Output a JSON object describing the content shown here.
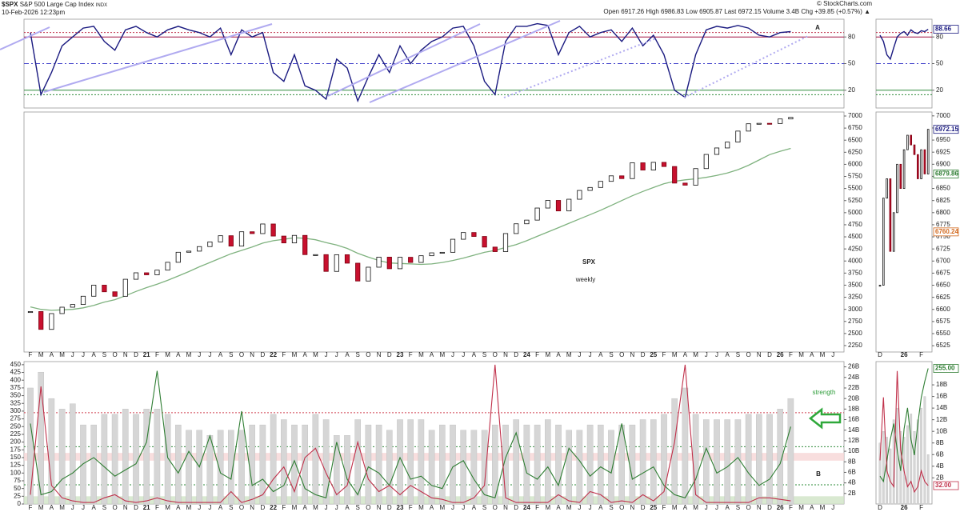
{
  "header": {
    "symbol": "$SPX",
    "name": "S&P 500 Large Cap Index",
    "exchange": "INDX",
    "datetime": "10-Feb-2026 12:23pm",
    "quote": [
      "Open 6917.26",
      "High 6986.83",
      "Low 6905.87",
      "Last 6972.15",
      "Volume 3.4B",
      "Chg +39.85 (+0.57%)"
    ],
    "credit": "© StockCharts.com",
    "annotations": [
      "A",
      "SPX",
      "weekly",
      "strength",
      "B"
    ]
  },
  "chart_data": [
    {
      "type": "line",
      "color": "#1a1a80",
      "ylim": [
        0,
        100
      ],
      "yticks": [
        80,
        50,
        20
      ],
      "ref_lines": [
        {
          "value": 85,
          "color": "#c0304a",
          "dash": "2,2"
        },
        {
          "value": 80,
          "color": "#a01040"
        },
        {
          "value": 50,
          "color": "#4444cc",
          "dash": "6,3,2,3"
        },
        {
          "value": 20,
          "color": "#2e8b3a"
        },
        {
          "value": 15,
          "color": "#2e8b3a",
          "dash": "2,2"
        }
      ],
      "values": [
        85,
        15,
        40,
        70,
        80,
        90,
        92,
        75,
        65,
        88,
        92,
        85,
        80,
        88,
        92,
        88,
        85,
        80,
        90,
        60,
        88,
        80,
        85,
        40,
        30,
        60,
        25,
        20,
        10,
        55,
        45,
        8,
        35,
        60,
        40,
        70,
        50,
        65,
        75,
        80,
        90,
        92,
        70,
        30,
        15,
        75,
        92,
        92,
        95,
        93,
        60,
        85,
        92,
        80,
        85,
        88,
        75,
        90,
        70,
        82,
        60,
        20,
        12,
        60,
        88,
        92,
        90,
        93,
        90,
        82,
        80,
        85,
        86,
        null,
        null,
        null,
        null
      ]
    },
    {
      "type": "candlestick",
      "ylim": [
        2117,
        7083
      ],
      "yticks": [
        2250,
        2500,
        2750,
        3000,
        3250,
        3500,
        3750,
        4000,
        4250,
        4500,
        4750,
        5000,
        5250,
        5500,
        5750,
        6000,
        6250,
        6500,
        6750,
        7000
      ],
      "categories": [
        "F",
        "M",
        "A",
        "M",
        "J",
        "J",
        "A",
        "S",
        "O",
        "N",
        "D",
        "21",
        "F",
        "M",
        "A",
        "M",
        "J",
        "J",
        "A",
        "S",
        "O",
        "N",
        "D",
        "22",
        "F",
        "M",
        "A",
        "M",
        "J",
        "J",
        "A",
        "S",
        "O",
        "N",
        "D",
        "23",
        "F",
        "M",
        "A",
        "M",
        "J",
        "J",
        "A",
        "S",
        "O",
        "N",
        "D",
        "24",
        "F",
        "M",
        "A",
        "M",
        "J",
        "J",
        "A",
        "S",
        "O",
        "N",
        "D",
        "25",
        "F",
        "M",
        "A",
        "M",
        "J",
        "J",
        "A",
        "S",
        "O",
        "N",
        "D",
        "26",
        "F",
        "M",
        "A",
        "M",
        "J"
      ],
      "values": [
        2954,
        2585,
        2912,
        3044,
        3100,
        3271,
        3500,
        3363,
        3270,
        3622,
        3756,
        3714,
        3811,
        3973,
        4181,
        4204,
        4298,
        4395,
        4523,
        4308,
        4605,
        4567,
        4766,
        4516,
        4374,
        4530,
        4132,
        4132,
        3785,
        4130,
        3955,
        3586,
        3872,
        4080,
        3840,
        4077,
        3970,
        4109,
        4169,
        4180,
        4450,
        4589,
        4508,
        4288,
        4194,
        4568,
        4770,
        4846,
        5096,
        5254,
        5036,
        5278,
        5460,
        5522,
        5648,
        5762,
        5705,
        6032,
        5882,
        6041,
        5955,
        5612,
        5569,
        5912,
        6205,
        6339,
        6460,
        6688,
        6840,
        6849,
        6845,
        6939,
        6972.15,
        null,
        null,
        null,
        null
      ],
      "overlays": [
        {
          "color": "#7fb27f",
          "values": [
            3050,
            3000,
            2980,
            2990,
            3000,
            3030,
            3080,
            3150,
            3200,
            3280,
            3370,
            3450,
            3520,
            3600,
            3690,
            3780,
            3880,
            3970,
            4060,
            4150,
            4220,
            4290,
            4370,
            4420,
            4450,
            4480,
            4470,
            4440,
            4380,
            4330,
            4260,
            4160,
            4080,
            4010,
            3960,
            3950,
            3940,
            3930,
            3940,
            3970,
            4010,
            4060,
            4120,
            4180,
            4220,
            4280,
            4340,
            4420,
            4510,
            4600,
            4690,
            4780,
            4870,
            4960,
            5050,
            5150,
            5250,
            5350,
            5440,
            5520,
            5600,
            5650,
            5680,
            5700,
            5730,
            5770,
            5820,
            5890,
            5980,
            6090,
            6200,
            6270,
            6330,
            null,
            null,
            null,
            null
          ]
        }
      ]
    },
    {
      "type": "bar",
      "ylim": [
        0,
        460
      ],
      "y2lim": [
        0,
        27
      ],
      "yticks": [
        0,
        25,
        50,
        75,
        100,
        125,
        150,
        175,
        200,
        225,
        250,
        275,
        300,
        325,
        350,
        375,
        400,
        425,
        450
      ],
      "y2ticks": [
        {
          "value": 2,
          "label": "2B"
        },
        {
          "value": 4,
          "label": "4B"
        },
        {
          "value": 6,
          "label": "6B"
        },
        {
          "value": 8,
          "label": "8B"
        },
        {
          "value": 10,
          "label": "10B"
        },
        {
          "value": 12,
          "label": "12B"
        },
        {
          "value": 14,
          "label": "14B"
        },
        {
          "value": 16,
          "label": "16B"
        },
        {
          "value": 18,
          "label": "18B"
        },
        {
          "value": 20,
          "label": "20B"
        },
        {
          "value": 22,
          "label": "22B"
        },
        {
          "value": 24,
          "label": "24B"
        },
        {
          "value": 26,
          "label": "26B"
        }
      ],
      "bands": [
        {
          "from": 140,
          "to": 165,
          "color": "#f6d6d6"
        },
        {
          "from": 0,
          "to": 25,
          "color": "#cfe3c6"
        }
      ],
      "ref_lines": [
        {
          "value": 295,
          "color": "#d04050",
          "dash": "2,2"
        },
        {
          "value": 185,
          "color": "#2e8b3a",
          "dash": "2,2"
        },
        {
          "value": 62,
          "color": "#2e8b3a",
          "dash": "2,2"
        }
      ],
      "series": [
        {
          "type": "bar",
          "axis": "y2",
          "color": "#d6d6d6",
          "values": [
            22,
            25,
            20,
            18,
            19,
            15,
            15,
            17,
            17,
            18,
            17,
            18,
            18,
            17,
            15,
            14,
            14,
            13,
            14,
            14,
            14,
            15,
            15,
            17,
            16,
            15,
            15,
            17,
            16,
            13,
            13,
            16,
            15,
            15,
            14,
            16,
            16,
            16,
            14,
            15,
            15,
            14,
            14,
            14,
            15,
            15,
            16,
            15,
            15,
            16,
            15,
            14,
            14,
            15,
            15,
            14,
            15,
            15,
            16,
            16,
            17,
            20,
            22,
            17,
            16,
            16,
            16,
            16,
            17,
            17,
            17,
            18,
            20,
            null,
            null,
            null,
            null
          ]
        },
        {
          "type": "line",
          "color": "#2e7d32",
          "values": [
            260,
            30,
            40,
            80,
            100,
            130,
            150,
            120,
            90,
            110,
            130,
            200,
            430,
            150,
            100,
            170,
            120,
            220,
            100,
            80,
            300,
            60,
            80,
            40,
            60,
            140,
            50,
            30,
            20,
            200,
            80,
            30,
            120,
            100,
            60,
            150,
            80,
            90,
            60,
            50,
            120,
            140,
            80,
            30,
            20,
            150,
            230,
            100,
            80,
            120,
            60,
            180,
            140,
            90,
            120,
            100,
            260,
            80,
            100,
            120,
            60,
            30,
            20,
            80,
            180,
            100,
            120,
            150,
            100,
            60,
            80,
            130,
            250,
            null,
            null,
            null,
            null
          ]
        },
        {
          "type": "line",
          "color": "#c0304a",
          "values": [
            30,
            380,
            60,
            20,
            10,
            5,
            5,
            20,
            30,
            10,
            5,
            10,
            20,
            10,
            5,
            5,
            5,
            5,
            5,
            40,
            5,
            15,
            30,
            80,
            120,
            40,
            150,
            180,
            100,
            30,
            60,
            200,
            80,
            40,
            60,
            30,
            60,
            40,
            20,
            15,
            5,
            5,
            20,
            60,
            450,
            20,
            5,
            5,
            5,
            5,
            30,
            10,
            5,
            40,
            30,
            5,
            10,
            5,
            30,
            10,
            40,
            200,
            450,
            30,
            5,
            5,
            5,
            5,
            5,
            20,
            20,
            15,
            10,
            null,
            null,
            null,
            null
          ]
        }
      ]
    },
    {
      "type": "line",
      "color": "#1a1a80",
      "ylim": [
        0,
        100
      ],
      "yticks": [
        80,
        50,
        20
      ],
      "ref_lines": [
        {
          "value": 85,
          "color": "#c0304a",
          "dash": "2,2"
        },
        {
          "value": 80,
          "color": "#a01040"
        },
        {
          "value": 50,
          "color": "#4444cc",
          "dash": "6,3,2,3"
        },
        {
          "value": 20,
          "color": "#2e8b3a"
        },
        {
          "value": 15,
          "color": "#2e8b3a",
          "dash": "2,2"
        }
      ],
      "values": [
        82,
        75,
        60,
        55,
        68,
        80,
        84,
        86,
        82,
        88,
        85,
        84,
        87,
        86,
        88.66
      ],
      "readouts": [
        {
          "value": 88.66,
          "color": "#1a1a80"
        }
      ]
    },
    {
      "type": "candlestick",
      "ylim": [
        6512,
        7008
      ],
      "yticks": [
        6525,
        6550,
        6575,
        6600,
        6625,
        6650,
        6675,
        6700,
        6725,
        6750,
        6775,
        6800,
        6825,
        6850,
        6875,
        6900,
        6925,
        6950,
        6975,
        7000
      ],
      "categories": [
        "D",
        null,
        null,
        null,
        null,
        null,
        null,
        "26",
        null,
        null,
        null,
        null,
        "F",
        null,
        null
      ],
      "values": [
        6650,
        6830,
        6870,
        6720,
        6800,
        6900,
        6850,
        6930,
        6960,
        6940,
        6920,
        6870,
        6930,
        6880,
        6972.15
      ],
      "readouts": [
        {
          "value": 6972.15,
          "color": "#1a1a80"
        },
        {
          "value": 6879.86,
          "color": "#2e7d32"
        },
        {
          "value": 6760.24,
          "color": "#d2691e"
        }
      ]
    },
    {
      "type": "bar",
      "ylim": [
        -3,
        268
      ],
      "y2lim": [
        -2.5,
        22
      ],
      "y2ticks": [
        {
          "value": 2,
          "label": "2B"
        },
        {
          "value": 4,
          "label": "4B"
        },
        {
          "value": 6,
          "label": "6B"
        },
        {
          "value": 8,
          "label": "8B"
        },
        {
          "value": 10,
          "label": "10B"
        },
        {
          "value": 12,
          "label": "12B"
        },
        {
          "value": 14,
          "label": "14B"
        },
        {
          "value": 16,
          "label": "16B"
        },
        {
          "value": 18,
          "label": "18B"
        }
      ],
      "series": [
        {
          "type": "bar",
          "axis": "y2",
          "color": "#d6d6d6",
          "values": [
            8,
            10,
            9,
            7,
            12,
            14,
            10,
            9,
            11,
            13,
            10,
            12,
            14,
            16,
            6
          ]
        },
        {
          "type": "line",
          "color": "#2e7d32",
          "values": [
            50,
            40,
            80,
            120,
            150,
            100,
            60,
            140,
            180,
            120,
            90,
            150,
            200,
            230,
            255
          ]
        },
        {
          "type": "line",
          "color": "#c0304a",
          "values": [
            80,
            200,
            60,
            40,
            30,
            250,
            100,
            60,
            30,
            40,
            20,
            30,
            60,
            40,
            32
          ]
        }
      ],
      "readouts": [
        {
          "value": 255,
          "label": "255.00",
          "color": "#2e7d32"
        },
        {
          "value": 32,
          "label": "32.00",
          "color": "#c0304a"
        }
      ]
    }
  ]
}
